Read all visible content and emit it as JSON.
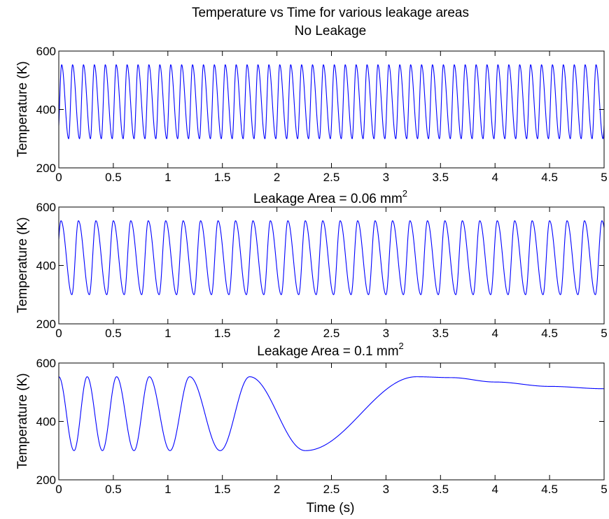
{
  "figure": {
    "title": "Temperature vs Time for various leakage areas"
  },
  "chart_data": [
    {
      "type": "line",
      "title": "No Leakage",
      "title_sup": "",
      "xlabel": "",
      "ylabel": "Temperature (K)",
      "xlim": [
        0,
        5
      ],
      "ylim": [
        200,
        600
      ],
      "xticks": [
        0,
        0.5,
        1,
        1.5,
        2,
        2.5,
        3,
        3.5,
        4,
        4.5,
        5
      ],
      "yticks": [
        200,
        400,
        600
      ],
      "color": "#0000ff",
      "grid": false,
      "series": [
        {
          "model": "periodic",
          "t_max": 0.026,
          "t_min": 0.09,
          "period": 0.1,
          "y_max": 553,
          "y_min": 300,
          "x_start": 0,
          "x_end": 5
        }
      ]
    },
    {
      "type": "line",
      "title": "Leakage Area = 0.06 mm",
      "title_sup": "2",
      "xlabel": "",
      "ylabel": "Temperature (K)",
      "xlim": [
        0,
        5
      ],
      "ylim": [
        200,
        600
      ],
      "xticks": [
        0,
        0.5,
        1,
        1.5,
        2,
        2.5,
        3,
        3.5,
        4,
        4.5,
        5
      ],
      "yticks": [
        200,
        400,
        600
      ],
      "color": "#0000ff",
      "grid": false,
      "series": [
        {
          "model": "periodic",
          "t_max": 0.02,
          "t_min": 0.12,
          "period": 0.16,
          "y_max": 553,
          "y_min": 300,
          "x_start": 0,
          "x_end": 5
        }
      ]
    },
    {
      "type": "line",
      "title": "Leakage Area = 0.1 mm",
      "title_sup": "2",
      "xlabel": "Time (s)",
      "ylabel": "Temperature (K)",
      "xlim": [
        0,
        5
      ],
      "ylim": [
        200,
        600
      ],
      "xticks": [
        0,
        0.5,
        1,
        1.5,
        2,
        2.5,
        3,
        3.5,
        4,
        4.5,
        5
      ],
      "yticks": [
        200,
        400,
        600
      ],
      "color": "#0000ff",
      "grid": false,
      "series": [
        {
          "model": "extrema",
          "points": [
            [
              0,
              553
            ],
            [
              0.14,
              300
            ],
            [
              0.26,
              553
            ],
            [
              0.4,
              300
            ],
            [
              0.53,
              553
            ],
            [
              0.69,
              300
            ],
            [
              0.83,
              553
            ],
            [
              1.02,
              300
            ],
            [
              1.2,
              553
            ],
            [
              1.48,
              300
            ],
            [
              1.75,
              553
            ],
            [
              2.26,
              300
            ],
            [
              3.28,
              553
            ],
            [
              3.6,
              550
            ],
            [
              4.0,
              535
            ],
            [
              4.5,
              520
            ],
            [
              5.0,
              512
            ]
          ]
        }
      ]
    }
  ]
}
